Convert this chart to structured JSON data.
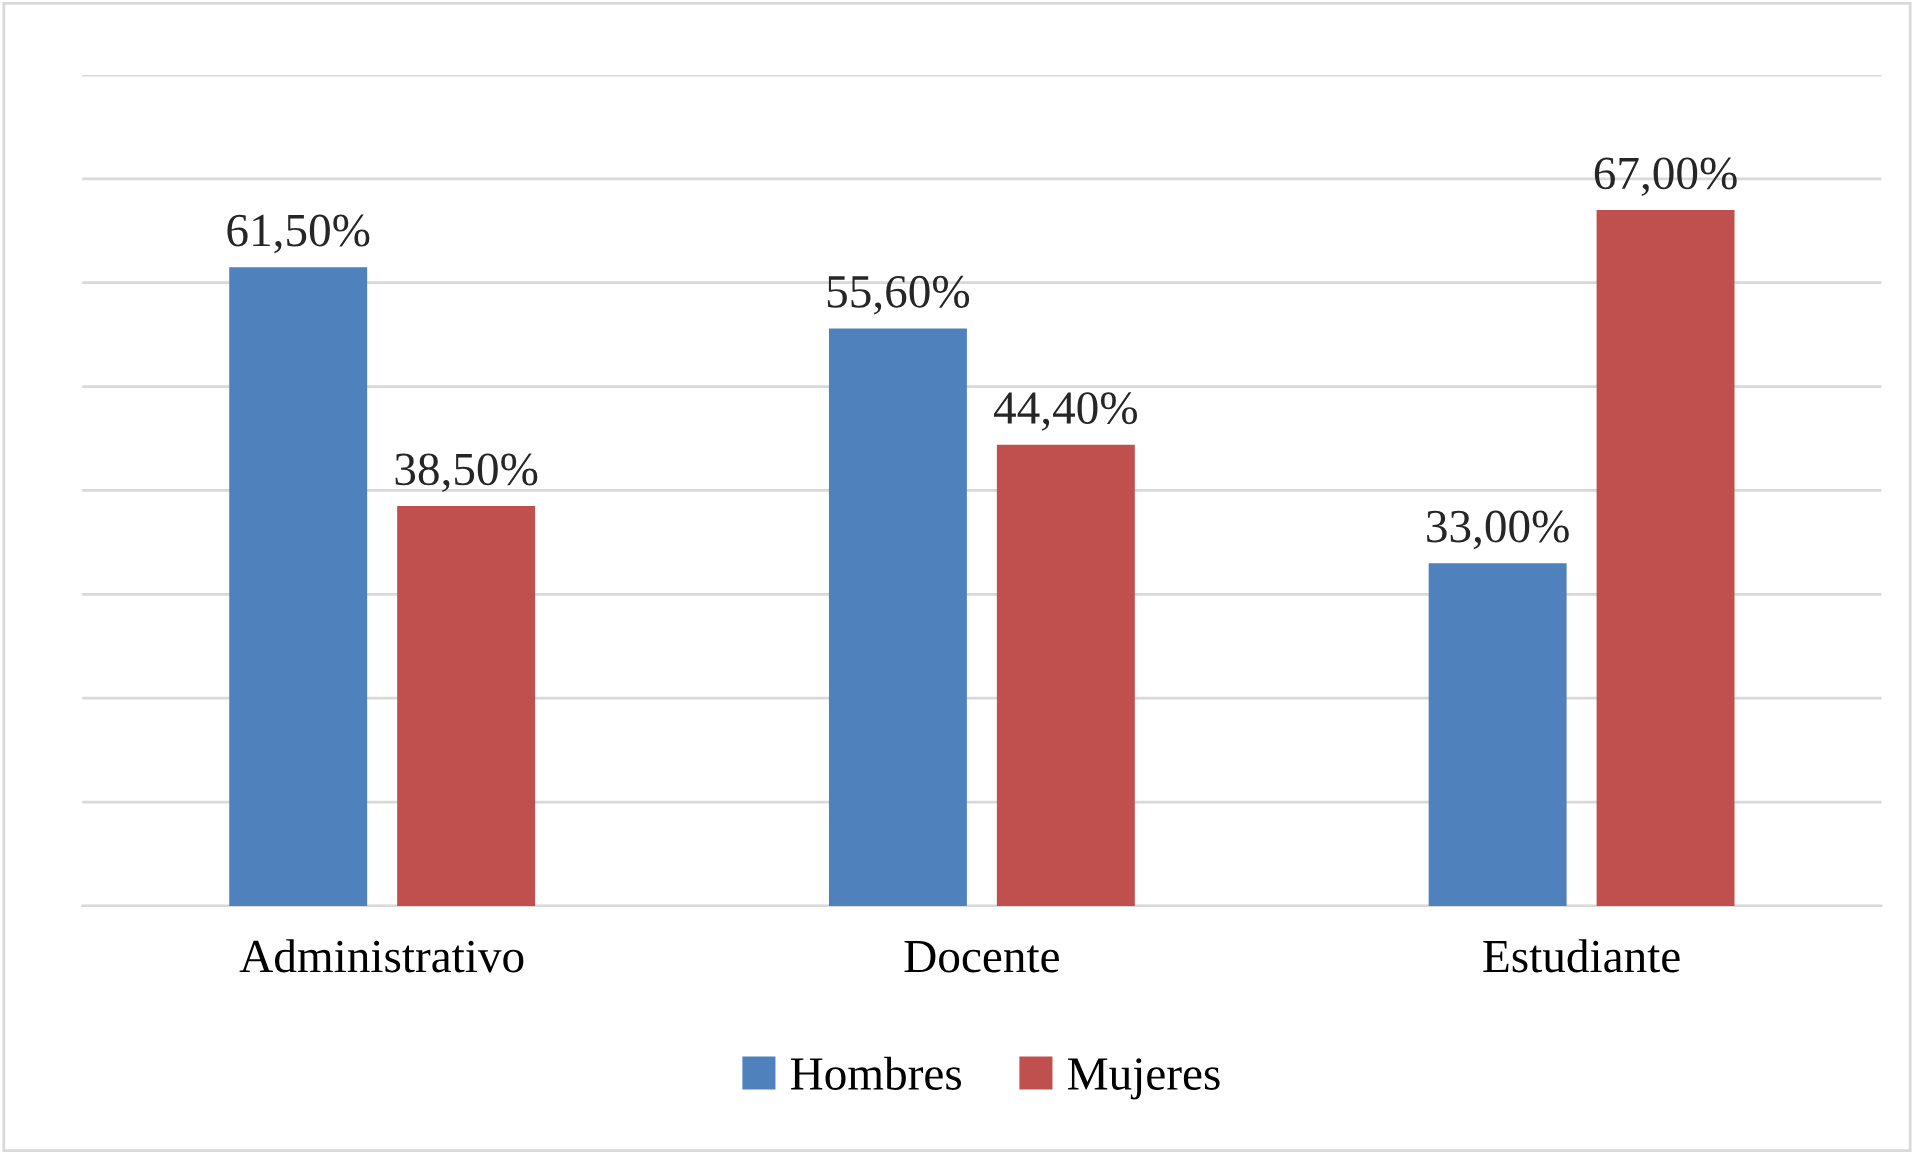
{
  "chart_data": {
    "type": "bar",
    "categories": [
      "Administrativo",
      "Docente",
      "Estudiante"
    ],
    "series": [
      {
        "name": "Hombres",
        "color": "#4f81bd",
        "values": [
          61.5,
          55.6,
          33.0
        ],
        "value_labels": [
          "61,50%",
          "55,60%",
          "33,00%"
        ]
      },
      {
        "name": "Mujeres",
        "color": "#c0504d",
        "values": [
          38.5,
          44.4,
          67.0
        ],
        "value_labels": [
          "38,50%",
          "44,40%",
          "67,00%"
        ]
      }
    ],
    "ylim": [
      0,
      80
    ],
    "yticks": [
      {
        "value": 0,
        "label": null
      },
      {
        "value": 10,
        "label": null
      },
      {
        "value": 20,
        "label": null
      },
      {
        "value": 30,
        "label": null
      },
      {
        "value": 40,
        "label": null
      },
      {
        "value": 50,
        "label": null
      },
      {
        "value": 60,
        "label": null
      },
      {
        "value": 70,
        "label": null
      },
      {
        "value": 80,
        "label": null
      }
    ],
    "tick_labels": "x",
    "grid": "y",
    "legend": "bottom"
  }
}
